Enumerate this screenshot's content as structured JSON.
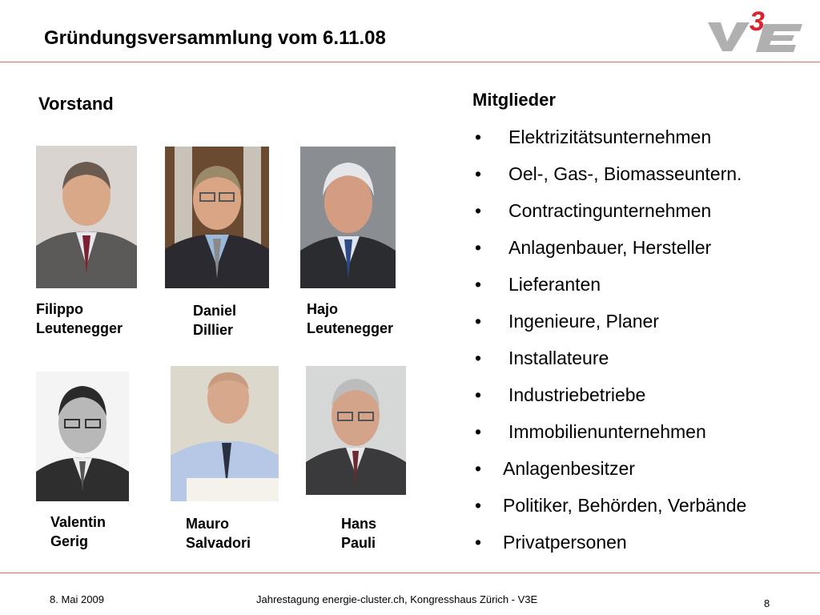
{
  "header": {
    "title": "Gründungsversammlung vom 6.11.08",
    "logo_text": "V3E"
  },
  "vorstand": {
    "heading": "Vorstand",
    "members": [
      {
        "first": "Filippo",
        "last": "Leutenegger"
      },
      {
        "first": "Daniel",
        "last": "Dillier"
      },
      {
        "first": "Hajo",
        "last": "Leutenegger"
      },
      {
        "first": "Valentin",
        "last": "Gerig"
      },
      {
        "first": "Mauro",
        "last": "Salvadori"
      },
      {
        "first": "Hans",
        "last": "Pauli"
      }
    ]
  },
  "mitglieder": {
    "heading": "Mitglieder",
    "bullet": "•",
    "items": [
      "Elektrizitätsunternehmen",
      "Oel-, Gas-, Biomasseuntern.",
      "Contractingunternehmen",
      "Anlagenbauer, Hersteller",
      "Lieferanten",
      "Ingenieure, Planer",
      "Installateure",
      "Industriebetriebe",
      "Immobilienunternehmen",
      "Anlagenbesitzer",
      "Politiker, Behörden, Verbände",
      "Privatpersonen"
    ]
  },
  "footer": {
    "date": "8. Mai 2009",
    "event": "Jahrestagung energie-cluster.ch, Kongresshaus Zürich - V3E",
    "page": "8"
  },
  "colors": {
    "rule": "#d8735d",
    "logo_gray": "#b0b0b0",
    "logo_red": "#d9232e"
  }
}
